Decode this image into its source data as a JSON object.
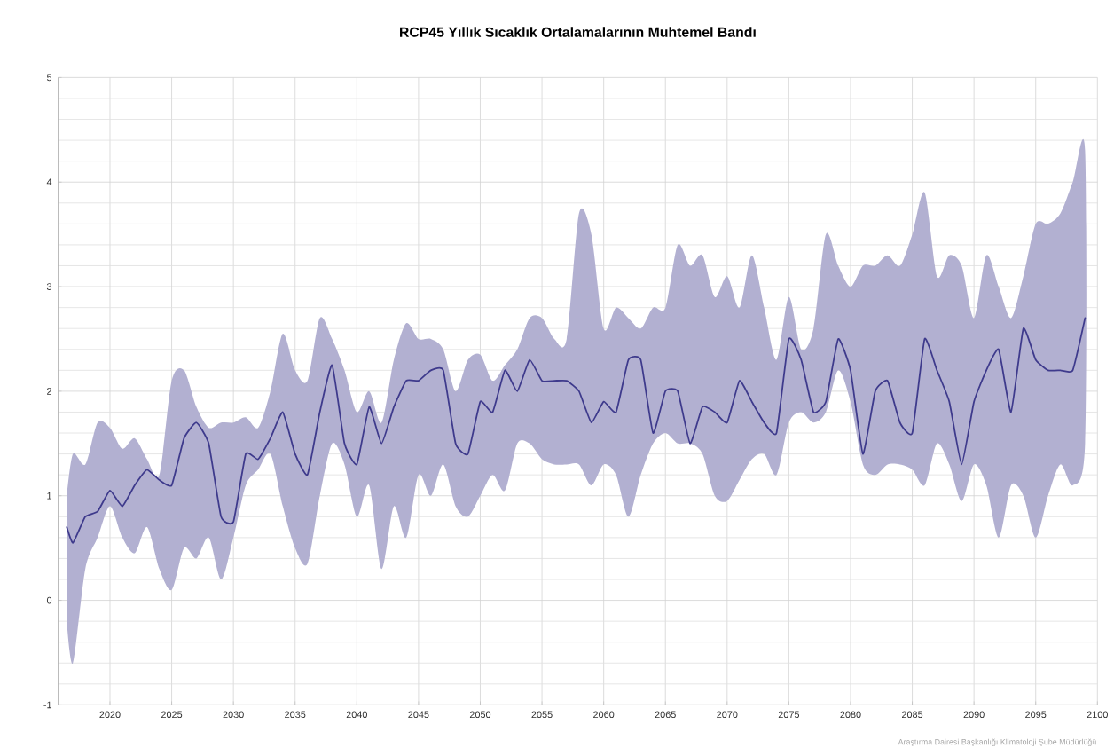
{
  "chart_data": {
    "type": "line",
    "title": "RCP45 Yıllık Sıcaklık Ortalamalarının Muhtemel Bandı",
    "annotations": [
      "Araştırma Dairesi Başkanlığı Klimatoloji Şube Müdürlüğü"
    ],
    "x": [
      2016.5,
      2017,
      2018,
      2019,
      2020,
      2021,
      2022,
      2023,
      2024,
      2025,
      2026,
      2027,
      2028,
      2029,
      2030,
      2031,
      2032,
      2033,
      2034,
      2035,
      2036,
      2037,
      2038,
      2039,
      2040,
      2041,
      2042,
      2043,
      2044,
      2045,
      2046,
      2047,
      2048,
      2049,
      2050,
      2051,
      2052,
      2053,
      2054,
      2055,
      2056,
      2057,
      2058,
      2059,
      2060,
      2061,
      2062,
      2063,
      2064,
      2065,
      2066,
      2067,
      2068,
      2069,
      2070,
      2071,
      2072,
      2073,
      2074,
      2075,
      2076,
      2077,
      2078,
      2079,
      2080,
      2081,
      2082,
      2083,
      2084,
      2085,
      2086,
      2087,
      2088,
      2089,
      2090,
      2091,
      2092,
      2093,
      2094,
      2095,
      2096,
      2097,
      2098,
      2099
    ],
    "series": [
      {
        "color": "#3e3a8c",
        "values": [
          0.7,
          0.55,
          0.8,
          0.85,
          1.05,
          0.9,
          1.1,
          1.25,
          1.15,
          1.1,
          1.55,
          1.7,
          1.5,
          0.8,
          0.75,
          1.4,
          1.35,
          1.55,
          1.8,
          1.4,
          1.2,
          1.8,
          2.25,
          1.5,
          1.3,
          1.85,
          1.5,
          1.85,
          2.1,
          2.1,
          2.2,
          2.2,
          1.5,
          1.4,
          1.9,
          1.8,
          2.2,
          2.0,
          2.3,
          2.1,
          2.1,
          2.1,
          2.0,
          1.7,
          1.9,
          1.8,
          2.3,
          2.3,
          1.6,
          2.0,
          2.0,
          1.5,
          1.85,
          1.8,
          1.7,
          2.1,
          1.9,
          1.7,
          1.6,
          2.5,
          2.3,
          1.8,
          1.9,
          2.5,
          2.2,
          1.4,
          2.0,
          2.1,
          1.7,
          1.6,
          2.5,
          2.2,
          1.9,
          1.3,
          1.9,
          2.2,
          2.4,
          1.8,
          2.6,
          2.3,
          2.2,
          2.2,
          2.2,
          2.7
        ],
        "upper": [
          1.0,
          1.4,
          1.3,
          1.7,
          1.65,
          1.45,
          1.55,
          1.35,
          1.2,
          2.1,
          2.2,
          1.85,
          1.65,
          1.7,
          1.7,
          1.75,
          1.65,
          2.0,
          2.55,
          2.2,
          2.1,
          2.7,
          2.5,
          2.2,
          1.8,
          2.0,
          1.7,
          2.3,
          2.65,
          2.5,
          2.5,
          2.4,
          2.0,
          2.3,
          2.35,
          2.1,
          2.25,
          2.4,
          2.7,
          2.7,
          2.5,
          2.5,
          3.7,
          3.5,
          2.6,
          2.8,
          2.7,
          2.6,
          2.8,
          2.8,
          3.4,
          3.2,
          3.3,
          2.9,
          3.1,
          2.8,
          3.3,
          2.8,
          2.3,
          2.9,
          2.4,
          2.6,
          3.5,
          3.2,
          3.0,
          3.2,
          3.2,
          3.3,
          3.2,
          3.5,
          3.9,
          3.1,
          3.3,
          3.2,
          2.7,
          3.3,
          3.0,
          2.7,
          3.1,
          3.6,
          3.6,
          3.7,
          4.0,
          4.3
        ],
        "lower": [
          -0.2,
          -0.6,
          0.3,
          0.6,
          0.9,
          0.6,
          0.45,
          0.7,
          0.3,
          0.1,
          0.5,
          0.4,
          0.6,
          0.2,
          0.6,
          1.1,
          1.25,
          1.4,
          0.9,
          0.5,
          0.35,
          1.0,
          1.5,
          1.3,
          0.8,
          1.1,
          0.3,
          0.9,
          0.6,
          1.2,
          1.0,
          1.3,
          0.9,
          0.8,
          1.0,
          1.2,
          1.05,
          1.5,
          1.5,
          1.35,
          1.3,
          1.3,
          1.3,
          1.1,
          1.3,
          1.2,
          0.8,
          1.2,
          1.5,
          1.6,
          1.5,
          1.5,
          1.4,
          1.0,
          0.95,
          1.15,
          1.35,
          1.4,
          1.2,
          1.7,
          1.8,
          1.7,
          1.8,
          2.2,
          1.9,
          1.3,
          1.2,
          1.3,
          1.3,
          1.25,
          1.1,
          1.5,
          1.3,
          0.95,
          1.3,
          1.1,
          0.6,
          1.1,
          1.0,
          0.6,
          1.0,
          1.3,
          1.1,
          1.5
        ]
      }
    ],
    "xlim": [
      2015.8,
      2100
    ],
    "xticks": [
      2020,
      2025,
      2030,
      2035,
      2040,
      2045,
      2050,
      2055,
      2060,
      2065,
      2070,
      2075,
      2080,
      2085,
      2090,
      2095,
      2100
    ],
    "ylim": [
      -1,
      5
    ],
    "yticks": [
      -1,
      0,
      1,
      2,
      3,
      4,
      5
    ],
    "grid": true
  }
}
